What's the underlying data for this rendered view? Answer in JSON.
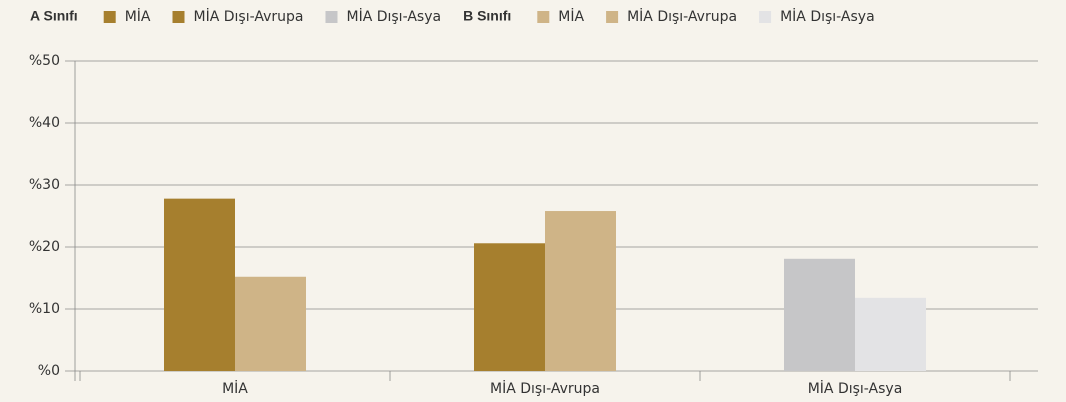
{
  "chart_data": {
    "type": "bar",
    "categories": [
      "MİA",
      "MİA Dışı-Avrupa",
      "MİA Dışı-Asya"
    ],
    "series_groups": [
      {
        "name": "A Sınıfı",
        "series": [
          {
            "name": "MİA",
            "color": "#a67f2e",
            "values": [
              27.8,
              null,
              null
            ]
          },
          {
            "name": "MİA Dışı-Avrupa",
            "color": "#a67f2e",
            "values": [
              null,
              20.6,
              null
            ]
          },
          {
            "name": "MİA Dışı-Asya",
            "color": "#c6c6c8",
            "values": [
              null,
              null,
              18.1
            ]
          }
        ]
      },
      {
        "name": "B Sınıfı",
        "series": [
          {
            "name": "MİA",
            "color": "#cfb487",
            "values": [
              15.2,
              null,
              null
            ]
          },
          {
            "name": "MİA Dışı-Avrupa",
            "color": "#cfb487",
            "values": [
              null,
              25.8,
              null
            ]
          },
          {
            "name": "MİA Dışı-Asya",
            "color": "#e3e3e5",
            "values": [
              null,
              null,
              11.8
            ]
          }
        ]
      }
    ],
    "ylim": [
      0,
      50
    ],
    "yticks": [
      {
        "value": 0,
        "label": "%0"
      },
      {
        "value": 10,
        "label": "%10"
      },
      {
        "value": 20,
        "label": "%20"
      },
      {
        "value": 30,
        "label": "%30"
      },
      {
        "value": 40,
        "label": "%40"
      },
      {
        "value": 50,
        "label": "%50"
      }
    ],
    "grid": true
  }
}
